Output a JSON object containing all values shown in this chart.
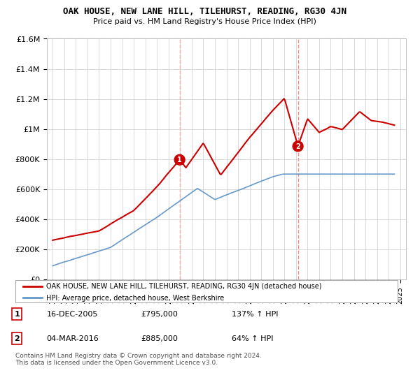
{
  "title": "OAK HOUSE, NEW LANE HILL, TILEHURST, READING, RG30 4JN",
  "subtitle": "Price paid vs. HM Land Registry's House Price Index (HPI)",
  "legend_line1": "OAK HOUSE, NEW LANE HILL, TILEHURST, READING, RG30 4JN (detached house)",
  "legend_line2": "HPI: Average price, detached house, West Berkshire",
  "footnote": "Contains HM Land Registry data © Crown copyright and database right 2024.\nThis data is licensed under the Open Government Licence v3.0.",
  "sale1_label": "1",
  "sale1_date": "16-DEC-2005",
  "sale1_price": "£795,000",
  "sale1_hpi": "137% ↑ HPI",
  "sale2_label": "2",
  "sale2_date": "04-MAR-2016",
  "sale2_price": "£885,000",
  "sale2_hpi": "64% ↑ HPI",
  "hpi_color": "#6699cc",
  "price_color": "#cc0000",
  "vline_color": "#ff8888",
  "ylim": [
    0,
    1600000
  ],
  "yticks": [
    0,
    200000,
    400000,
    600000,
    800000,
    1000000,
    1200000,
    1400000,
    1600000
  ],
  "ytick_labels": [
    "£0",
    "£200K",
    "£400K",
    "£600K",
    "£800K",
    "£1M",
    "£1.2M",
    "£1.4M",
    "£1.6M"
  ],
  "sale1_x": 2005.96,
  "sale1_y": 795000,
  "sale2_x": 2016.17,
  "sale2_y": 885000,
  "xmin": 1994.5,
  "xmax": 2025.5
}
